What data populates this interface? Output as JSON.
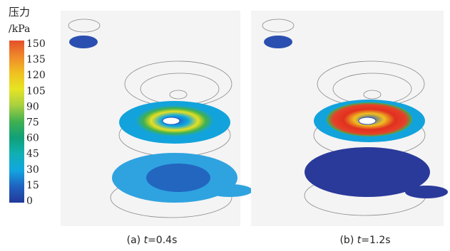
{
  "colorbar": {
    "title": "压力",
    "unit": "/kPa",
    "ticks": [
      150,
      135,
      120,
      105,
      90,
      75,
      60,
      45,
      30,
      15,
      0
    ]
  },
  "panels": [
    {
      "label": "(a)",
      "variable": "t",
      "value": "=0.4s"
    },
    {
      "label": "(b)",
      "variable": "t",
      "value": "=1.2s"
    }
  ]
}
